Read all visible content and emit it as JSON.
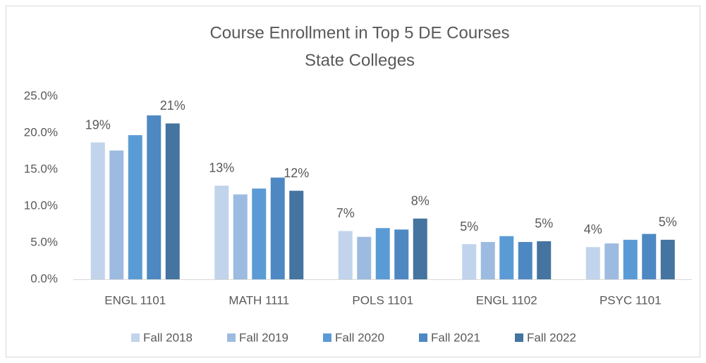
{
  "chart_data": {
    "type": "bar",
    "title": [
      "Course Enrollment in Top 5 DE Courses",
      "State Colleges"
    ],
    "categories": [
      "ENGL 1101",
      "MATH 1111",
      "POLS 1101",
      "ENGL 1102",
      "PSYC 1101"
    ],
    "series": [
      {
        "name": "Fall 2018",
        "color": "#c1d4ec",
        "values": [
          18.7,
          12.8,
          6.6,
          4.8,
          4.4
        ],
        "value_labels": [
          "19%",
          "13%",
          "7%",
          "5%",
          "4%"
        ]
      },
      {
        "name": "Fall 2019",
        "color": "#9dbbe0",
        "values": [
          17.6,
          11.6,
          5.8,
          5.1,
          4.9
        ]
      },
      {
        "name": "Fall 2020",
        "color": "#5b9bd5",
        "values": [
          19.7,
          12.4,
          7.0,
          5.9,
          5.4
        ]
      },
      {
        "name": "Fall 2021",
        "color": "#4d88c2",
        "values": [
          22.4,
          13.9,
          6.8,
          5.1,
          6.2
        ]
      },
      {
        "name": "Fall 2022",
        "color": "#44749f",
        "values": [
          21.3,
          12.1,
          8.3,
          5.2,
          5.4
        ],
        "value_labels": [
          "21%",
          "12%",
          "8%",
          "5%",
          "5%"
        ]
      }
    ],
    "ylim": [
      0,
      25
    ],
    "yticks": [
      {
        "value": 0,
        "label": "0.0%"
      },
      {
        "value": 5,
        "label": "5.0%"
      },
      {
        "value": 10,
        "label": "10.0%"
      },
      {
        "value": 15,
        "label": "15.0%"
      },
      {
        "value": 20,
        "label": "20.0%"
      },
      {
        "value": 25,
        "label": "25.0%"
      }
    ],
    "grid": false,
    "legend": "bottom"
  }
}
